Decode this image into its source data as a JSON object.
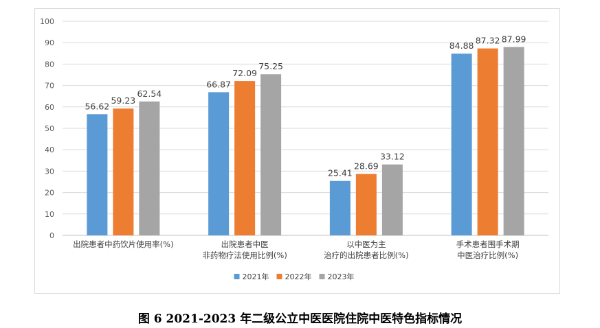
{
  "caption": "图 6 2021-2023 年二级公立中医医院住院中医特色指标情况",
  "chart_data": {
    "type": "bar",
    "categories": [
      [
        "出院患者中药饮片使用率(%)"
      ],
      [
        "出院患者中医",
        "非药物疗法使用比例(%)"
      ],
      [
        "以中医为主",
        "治疗的出院患者比例(%)"
      ],
      [
        "手术患者围手术期",
        "中医治疗比例(%)"
      ]
    ],
    "series": [
      {
        "name": "2021年",
        "color": "#5B9BD5",
        "values": [
          56.62,
          66.87,
          25.41,
          84.88
        ]
      },
      {
        "name": "2022年",
        "color": "#ED7D31",
        "values": [
          59.23,
          72.09,
          28.69,
          87.32
        ]
      },
      {
        "name": "2023年",
        "color": "#A5A5A5",
        "values": [
          62.54,
          75.25,
          33.12,
          87.99
        ]
      }
    ],
    "ylim": [
      0,
      100
    ],
    "yticks": [
      "0",
      "10",
      "20",
      "30",
      "40",
      "50",
      "60",
      "70",
      "80",
      "90",
      "100"
    ],
    "grid": true,
    "legend_position": "bottom"
  }
}
